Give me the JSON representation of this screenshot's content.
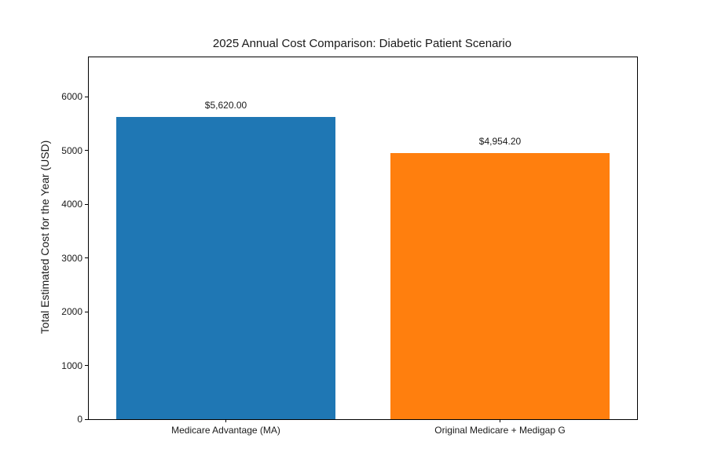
{
  "chart_data": {
    "type": "bar",
    "title": "2025 Annual Cost Comparison: Diabetic Patient Scenario",
    "xlabel": "",
    "ylabel": "Total Estimated Cost for the Year (USD)",
    "categories": [
      "Medicare Advantage (MA)",
      "Original Medicare + Medigap G"
    ],
    "values": [
      5620.0,
      4954.2
    ],
    "value_labels": [
      "$5,620.00",
      "$4,954.20"
    ],
    "bar_colors": [
      "#1f77b4",
      "#ff7f0e"
    ],
    "yticks": [
      0,
      1000,
      2000,
      3000,
      4000,
      5000,
      6000
    ],
    "ylim": [
      0,
      6730
    ],
    "grid": false,
    "legend": false,
    "background_color": "#ffffff",
    "spine_color": "#000000"
  }
}
